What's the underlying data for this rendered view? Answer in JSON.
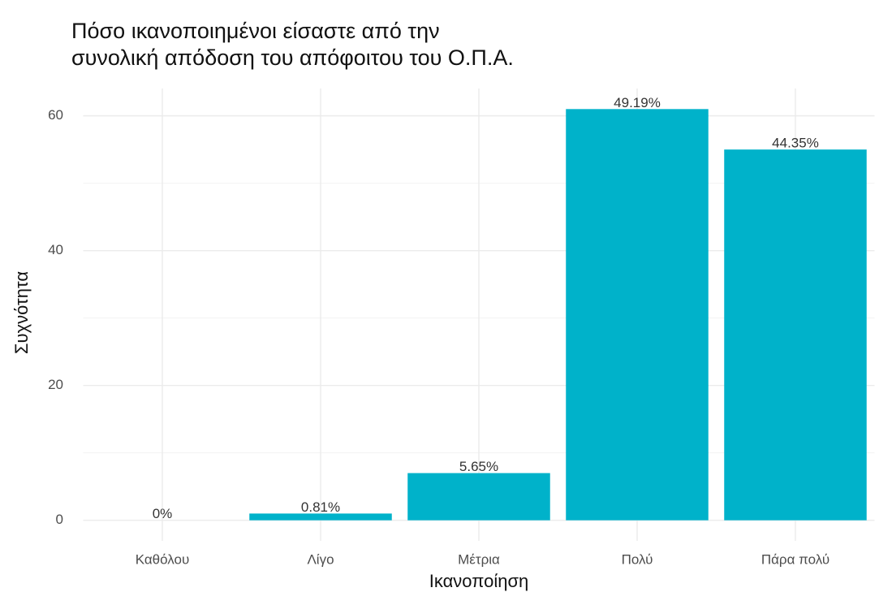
{
  "chart_data": {
    "type": "bar",
    "title": [
      "Πόσο ικανοποιημένοι είσαστε από την",
      "συνολική απόδοση του απόφοιτου του Ο.Π.Α."
    ],
    "x_label": "Ικανοποίηση",
    "y_label": "Συχνότητα",
    "categories": [
      "Καθόλου",
      "Λίγο",
      "Μέτρια",
      "Πολύ",
      "Πάρα πολύ"
    ],
    "values": [
      0,
      1,
      7,
      61,
      55
    ],
    "bar_labels": [
      "0%",
      "0.81%",
      "5.65%",
      "49.19%",
      "44.35%"
    ],
    "color": "#00b2ca",
    "ylim": [
      -3.05,
      64.05
    ],
    "yticks": [
      0,
      20,
      40,
      60
    ],
    "y_minor_ticks": [
      10,
      30,
      50
    ],
    "grid": true
  }
}
